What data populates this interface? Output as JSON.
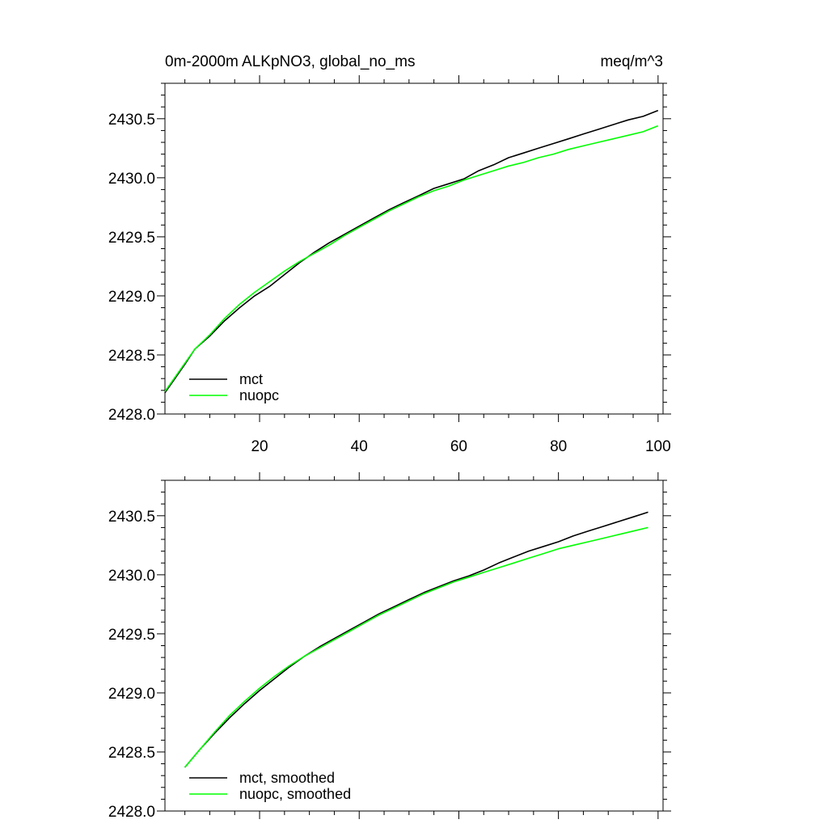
{
  "chart_data": [
    {
      "type": "line",
      "title_left": "0m-2000m ALKpNO3, global_no_ms",
      "title_right": "meq/m^3",
      "xlim": [
        1,
        101
      ],
      "ylim": [
        2428.0,
        2430.8
      ],
      "x_ticks": [
        20,
        40,
        60,
        80,
        100
      ],
      "x_tick_labels": [
        "20",
        "40",
        "60",
        "80",
        "100"
      ],
      "y_ticks": [
        2428.0,
        2428.5,
        2429.0,
        2429.5,
        2430.0,
        2430.5
      ],
      "y_tick_labels": [
        "2428.0",
        "2428.5",
        "2429.0",
        "2429.5",
        "2430.0",
        "2430.5"
      ],
      "grid": false,
      "legend_position": "bottom-left",
      "series": [
        {
          "name": "mct",
          "color": "#000000",
          "x": [
            1,
            3,
            5,
            7,
            10,
            13,
            16,
            19,
            22,
            25,
            28,
            31,
            34,
            37,
            40,
            43,
            46,
            49,
            52,
            55,
            58,
            61,
            64,
            67,
            70,
            73,
            76,
            79,
            82,
            85,
            88,
            91,
            94,
            97,
            100
          ],
          "y": [
            2428.18,
            2428.3,
            2428.42,
            2428.55,
            2428.66,
            2428.79,
            2428.9,
            2429.0,
            2429.08,
            2429.18,
            2429.28,
            2429.37,
            2429.45,
            2429.52,
            2429.59,
            2429.66,
            2429.73,
            2429.79,
            2429.85,
            2429.91,
            2429.95,
            2429.99,
            2430.06,
            2430.11,
            2430.17,
            2430.21,
            2430.25,
            2430.29,
            2430.33,
            2430.37,
            2430.41,
            2430.45,
            2430.49,
            2430.52,
            2430.57
          ]
        },
        {
          "name": "nuopc",
          "color": "#00ff00",
          "x": [
            1,
            3,
            5,
            7,
            10,
            13,
            16,
            19,
            22,
            25,
            28,
            31,
            34,
            37,
            40,
            43,
            46,
            49,
            52,
            55,
            58,
            61,
            64,
            67,
            70,
            73,
            76,
            79,
            82,
            85,
            88,
            91,
            94,
            97,
            100
          ],
          "y": [
            2428.19,
            2428.31,
            2428.43,
            2428.55,
            2428.67,
            2428.81,
            2428.93,
            2429.03,
            2429.12,
            2429.21,
            2429.29,
            2429.36,
            2429.43,
            2429.51,
            2429.58,
            2429.65,
            2429.72,
            2429.78,
            2429.84,
            2429.89,
            2429.93,
            2429.98,
            2430.02,
            2430.06,
            2430.1,
            2430.13,
            2430.17,
            2430.2,
            2430.24,
            2430.27,
            2430.3,
            2430.33,
            2430.36,
            2430.39,
            2430.44
          ]
        }
      ]
    },
    {
      "type": "line",
      "xlim": [
        1,
        101
      ],
      "ylim": [
        2428.0,
        2430.8
      ],
      "x_ticks": [
        20,
        40,
        60,
        80,
        100
      ],
      "y_ticks": [
        2428.0,
        2428.5,
        2429.0,
        2429.5,
        2430.0,
        2430.5
      ],
      "y_tick_labels": [
        "2428.0",
        "2428.5",
        "2429.0",
        "2429.5",
        "2430.0",
        "2430.5"
      ],
      "grid": false,
      "legend_position": "bottom-left",
      "series": [
        {
          "name": "mct, smoothed",
          "color": "#000000",
          "x": [
            5,
            8,
            11,
            14,
            17,
            20,
            23,
            26,
            29,
            32,
            35,
            38,
            41,
            44,
            47,
            50,
            53,
            56,
            59,
            62,
            65,
            68,
            71,
            74,
            77,
            80,
            83,
            86,
            89,
            92,
            95,
            98
          ],
          "y": [
            2428.37,
            2428.52,
            2428.66,
            2428.79,
            2428.91,
            2429.02,
            2429.12,
            2429.22,
            2429.31,
            2429.39,
            2429.46,
            2429.53,
            2429.6,
            2429.67,
            2429.73,
            2429.79,
            2429.85,
            2429.9,
            2429.95,
            2429.99,
            2430.04,
            2430.1,
            2430.15,
            2430.2,
            2430.24,
            2430.28,
            2430.33,
            2430.37,
            2430.41,
            2430.45,
            2430.49,
            2430.53
          ]
        },
        {
          "name": "nuopc, smoothed",
          "color": "#00ff00",
          "x": [
            5,
            8,
            11,
            14,
            17,
            20,
            23,
            26,
            29,
            32,
            35,
            38,
            41,
            44,
            47,
            50,
            53,
            56,
            59,
            62,
            65,
            68,
            71,
            74,
            77,
            80,
            83,
            86,
            89,
            92,
            95,
            98
          ],
          "y": [
            2428.37,
            2428.52,
            2428.67,
            2428.81,
            2428.93,
            2429.04,
            2429.14,
            2429.23,
            2429.31,
            2429.38,
            2429.45,
            2429.52,
            2429.59,
            2429.66,
            2429.72,
            2429.78,
            2429.84,
            2429.89,
            2429.94,
            2429.98,
            2430.02,
            2430.06,
            2430.1,
            2430.14,
            2430.18,
            2430.22,
            2430.25,
            2430.28,
            2430.31,
            2430.34,
            2430.37,
            2430.4
          ]
        }
      ]
    }
  ]
}
